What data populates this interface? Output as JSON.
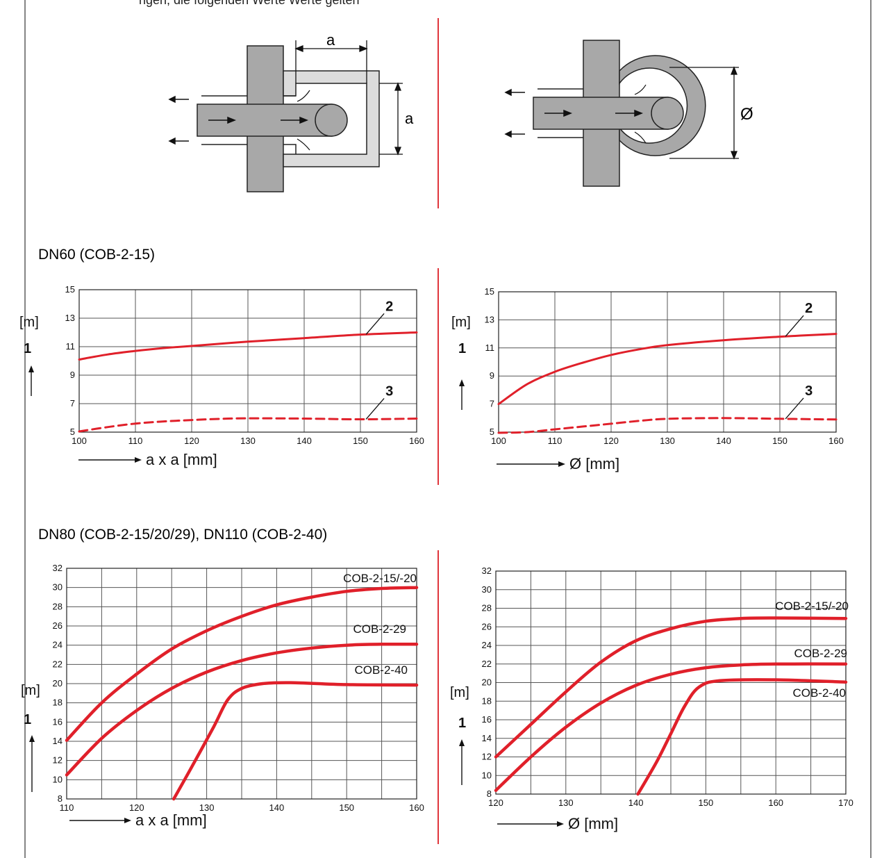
{
  "header_text": "ngen, die folgenden Werte Werte gelten",
  "sections": {
    "dn60": "DN60 (COB-2-15)",
    "dn80": "DN80 (COB-2-15/20/29), DN110 (COB-2-40)"
  },
  "diagrams": {
    "square_label_width": "a",
    "square_label_height": "a",
    "round_label_diameter": "Ø"
  },
  "colors": {
    "curve": "#e0202a",
    "separator": "#e0353b",
    "grid": "#555555",
    "duct": "#a8a8a8",
    "duct_light": "#dcdcdc"
  },
  "chart_data": [
    {
      "id": "dn60-square",
      "type": "line",
      "unit_label": "[m]",
      "axis_marker": "1",
      "xlabel": "a x a [mm]",
      "xticks": [
        100,
        110,
        120,
        130,
        140,
        150,
        160
      ],
      "yticks": [
        5,
        7,
        9,
        11,
        13,
        15
      ],
      "xlim": [
        100,
        160
      ],
      "ylim": [
        5,
        15
      ],
      "series": [
        {
          "name": "2",
          "style": "solid",
          "x": [
            100,
            105,
            110,
            115,
            120,
            130,
            140,
            150,
            160
          ],
          "y": [
            10.1,
            10.45,
            10.7,
            10.9,
            11.05,
            11.35,
            11.6,
            11.85,
            12.0
          ]
        },
        {
          "name": "3",
          "style": "dashed",
          "x": [
            100,
            105,
            110,
            115,
            120,
            125,
            130,
            140,
            150,
            160
          ],
          "y": [
            5.05,
            5.35,
            5.6,
            5.75,
            5.85,
            5.93,
            5.97,
            5.95,
            5.9,
            5.95
          ]
        }
      ],
      "callouts": [
        {
          "text": "2",
          "series": 0,
          "at_x": 151
        },
        {
          "text": "3",
          "series": 1,
          "at_x": 151
        }
      ]
    },
    {
      "id": "dn60-round",
      "type": "line",
      "unit_label": "[m]",
      "axis_marker": "1",
      "xlabel": "Ø [mm]",
      "xticks": [
        100,
        110,
        120,
        130,
        140,
        150,
        160
      ],
      "yticks": [
        5,
        7,
        9,
        11,
        13,
        15
      ],
      "xlim": [
        100,
        160
      ],
      "ylim": [
        5,
        15
      ],
      "series": [
        {
          "name": "2",
          "style": "solid",
          "x": [
            100,
            105,
            110,
            115,
            120,
            125,
            130,
            140,
            150,
            160
          ],
          "y": [
            7.0,
            8.4,
            9.3,
            9.95,
            10.5,
            10.9,
            11.2,
            11.55,
            11.8,
            12.0
          ]
        },
        {
          "name": "3",
          "style": "dashed",
          "x": [
            100,
            105,
            110,
            115,
            120,
            125,
            130,
            140,
            150,
            160
          ],
          "y": [
            4.95,
            5.0,
            5.2,
            5.4,
            5.6,
            5.8,
            5.95,
            6.0,
            5.95,
            5.9
          ]
        }
      ],
      "callouts": [
        {
          "text": "2",
          "series": 0,
          "at_x": 151
        },
        {
          "text": "3",
          "series": 1,
          "at_x": 151
        }
      ]
    },
    {
      "id": "dn80-square",
      "type": "line",
      "unit_label": "[m]",
      "axis_marker": "1",
      "xlabel": "a x a [mm]",
      "xticks": [
        110,
        120,
        130,
        140,
        150,
        160
      ],
      "xgrid_step": 5,
      "yticks": [
        8,
        10,
        12,
        14,
        16,
        18,
        20,
        22,
        24,
        26,
        28,
        30,
        32
      ],
      "xlim": [
        110,
        160
      ],
      "ylim": [
        8,
        32
      ],
      "series": [
        {
          "name": "COB-2-15/-20",
          "x": [
            110,
            115,
            120,
            125,
            130,
            135,
            140,
            145,
            150,
            155,
            160
          ],
          "y": [
            14.1,
            18.0,
            21.0,
            23.6,
            25.5,
            27.0,
            28.2,
            29.0,
            29.6,
            29.9,
            30.0
          ]
        },
        {
          "name": "COB-2-29",
          "x": [
            110,
            115,
            120,
            125,
            130,
            135,
            140,
            145,
            150,
            155,
            160
          ],
          "y": [
            10.5,
            14.3,
            17.2,
            19.5,
            21.2,
            22.4,
            23.2,
            23.7,
            24.0,
            24.1,
            24.1
          ]
        },
        {
          "name": "COB-2-40",
          "x": [
            125.3,
            128,
            131,
            133,
            135,
            138,
            142,
            150,
            160
          ],
          "y": [
            8.0,
            11.5,
            15.5,
            18.3,
            19.5,
            20.0,
            20.1,
            19.9,
            19.85
          ]
        }
      ]
    },
    {
      "id": "dn80-round",
      "type": "line",
      "unit_label": "[m]",
      "axis_marker": "1",
      "xlabel": "Ø [mm]",
      "xticks": [
        120,
        130,
        140,
        150,
        160,
        170
      ],
      "xgrid_step": 5,
      "yticks": [
        8,
        10,
        12,
        14,
        16,
        18,
        20,
        22,
        24,
        26,
        28,
        30,
        32
      ],
      "xlim": [
        120,
        170
      ],
      "ylim": [
        8,
        32
      ],
      "series": [
        {
          "name": "COB-2-15/-20",
          "x": [
            120,
            125,
            130,
            135,
            140,
            145,
            150,
            155,
            160,
            170
          ],
          "y": [
            12.0,
            15.5,
            19.0,
            22.2,
            24.5,
            25.8,
            26.6,
            26.9,
            26.95,
            26.9
          ]
        },
        {
          "name": "COB-2-29",
          "x": [
            120,
            125,
            130,
            135,
            140,
            145,
            150,
            155,
            160,
            170
          ],
          "y": [
            8.4,
            12.0,
            15.2,
            17.8,
            19.7,
            20.9,
            21.6,
            21.9,
            22.0,
            22.0
          ]
        },
        {
          "name": "COB-2-40",
          "x": [
            140.3,
            143,
            145,
            147,
            149,
            152,
            160,
            170
          ],
          "y": [
            8.0,
            11.5,
            14.5,
            17.5,
            19.5,
            20.2,
            20.3,
            20.05
          ]
        }
      ]
    }
  ]
}
